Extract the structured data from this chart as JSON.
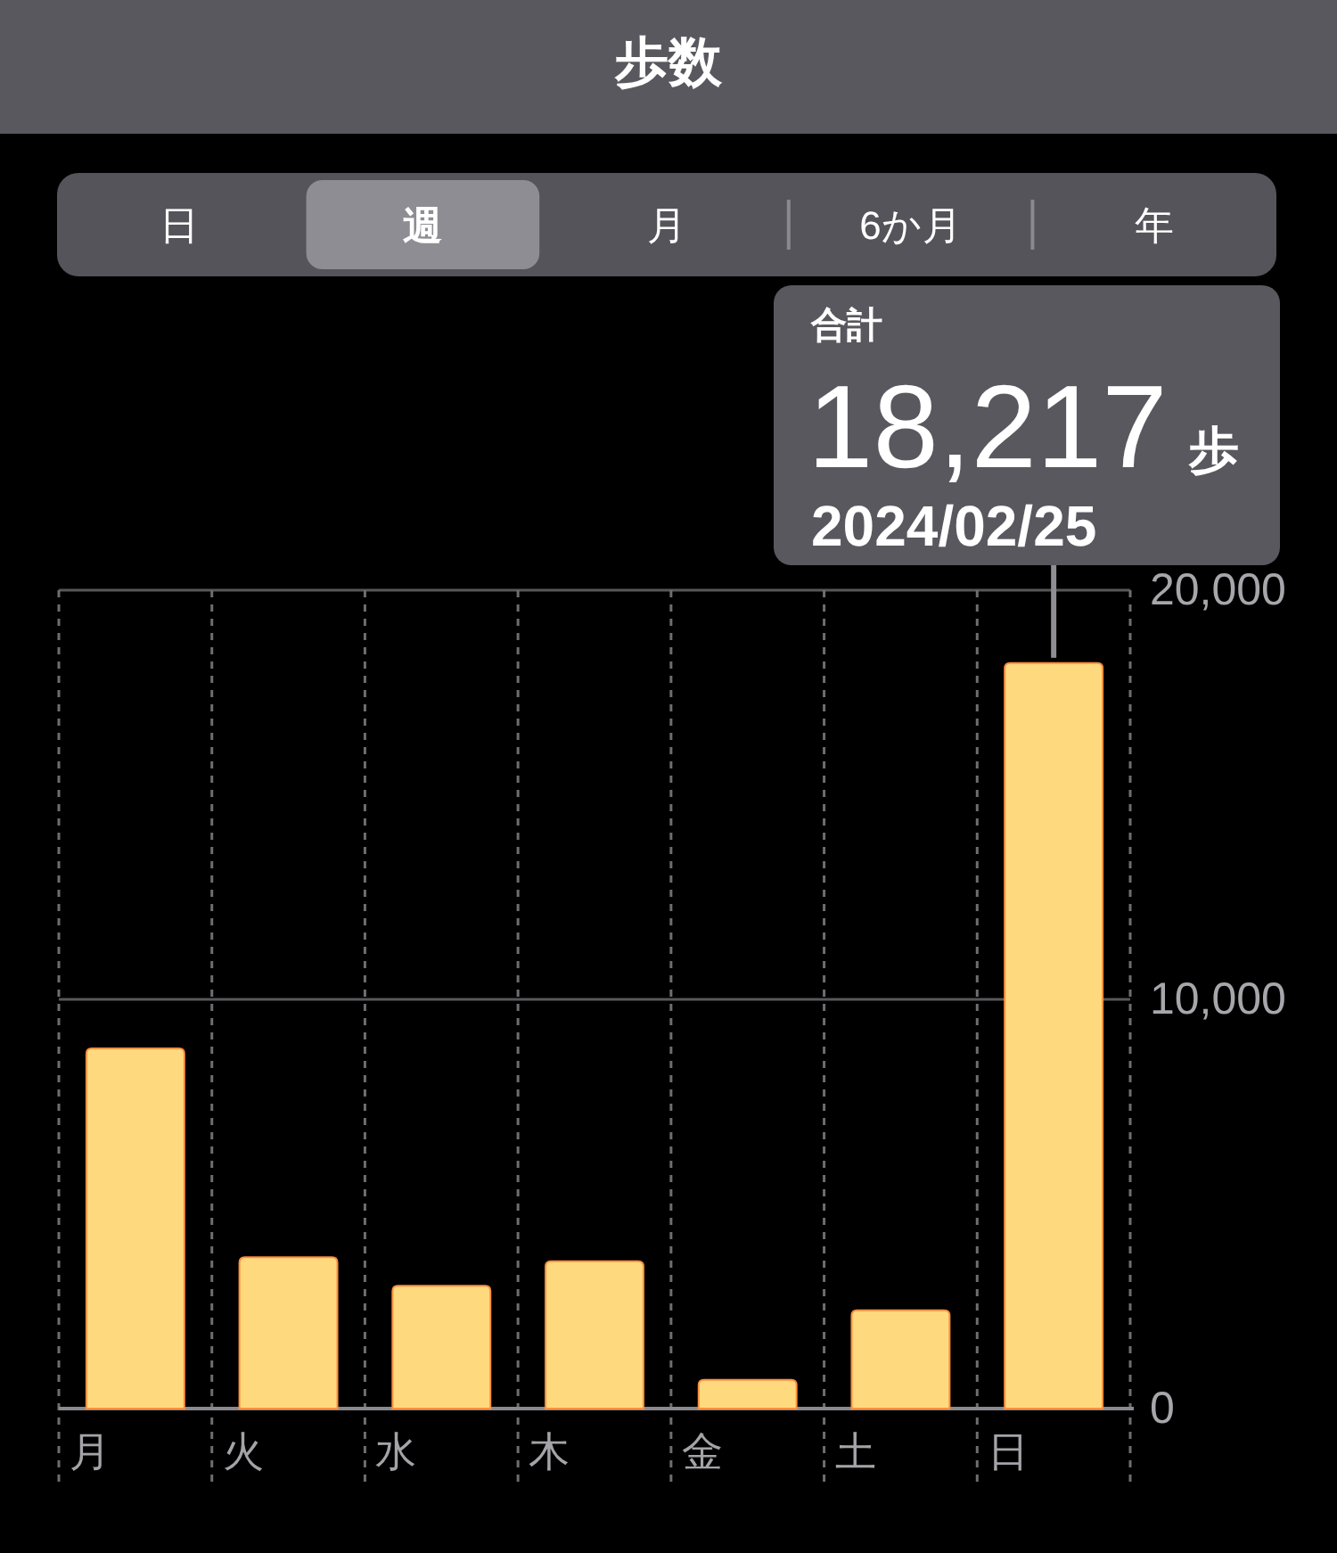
{
  "chart_data": {
    "type": "bar",
    "title": "歩数",
    "annotations": [
      "日",
      "週",
      "月",
      "6か月",
      "年",
      "合計",
      {
        "text": "2024/02/25",
        "x": "日",
        "y": 18217
      }
    ],
    "categories": [
      "月",
      "火",
      "水",
      "木",
      "金",
      "土",
      "日"
    ],
    "values": [
      8800,
      3700,
      3000,
      3600,
      700,
      2400,
      18217
    ],
    "color": "#ffd97e",
    "value_labels": [
      null,
      null,
      null,
      null,
      null,
      null,
      "18,217 歩"
    ],
    "ylim": [
      0,
      20000
    ],
    "yticks": [
      0,
      {
        "value": 10000,
        "label": "10,000"
      },
      {
        "value": 20000,
        "label": "20,000"
      }
    ],
    "grid": true
  }
}
